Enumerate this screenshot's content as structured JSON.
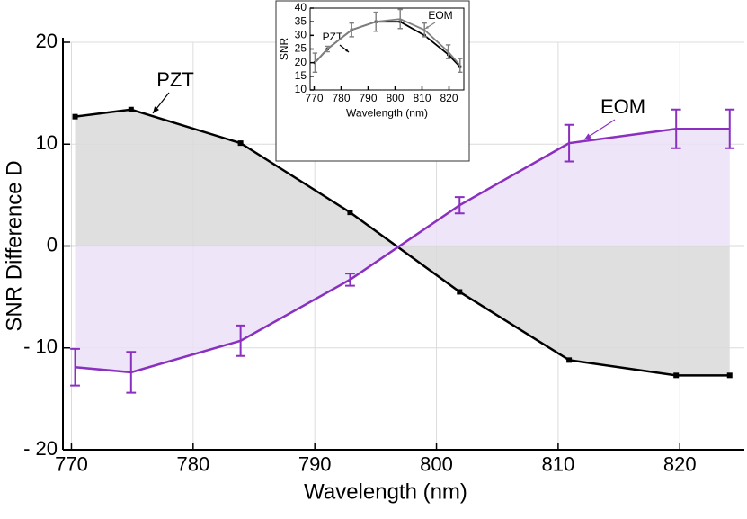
{
  "chart_data": [
    {
      "type": "line",
      "xlabel": "Wavelength (nm)",
      "ylabel": "SNR Difference D",
      "x": [
        770.3,
        774.9,
        783.9,
        792.9,
        801.9,
        810.9,
        819.7,
        824.1
      ],
      "xlim": [
        769.3,
        825.3
      ],
      "xticks": [
        770,
        780,
        790,
        800,
        810,
        820
      ],
      "ylim": [
        -20,
        20
      ],
      "yticks": [
        {
          "value": -20,
          "label": "- 20"
        },
        {
          "value": -10,
          "label": "- 10"
        },
        0,
        10,
        20
      ],
      "grid": true,
      "series": [
        {
          "name": "PZT",
          "color": "#000000",
          "fill": "#d9d9d9",
          "values": [
            12.7,
            13.4,
            10.1,
            3.3,
            -4.5,
            -11.2,
            -12.7,
            -12.7
          ]
        },
        {
          "name": "EOM",
          "color": "#8a2fc0",
          "fill": "#ebe1f7",
          "values": [
            -11.9,
            -12.4,
            -9.3,
            -3.3,
            4.0,
            10.1,
            11.5,
            11.5
          ],
          "errors": [
            1.8,
            2.0,
            1.5,
            0.6,
            0.8,
            1.8,
            1.9,
            1.9
          ]
        }
      ]
    },
    {
      "type": "line",
      "xlabel": "Wavelength (nm)",
      "ylabel": "SNR",
      "x": [
        770.3,
        774.9,
        783.9,
        792.9,
        801.9,
        810.9,
        819.7,
        824.1
      ],
      "xlim": [
        768.5,
        825.5
      ],
      "xticks": [
        770,
        780,
        790,
        800,
        810,
        820
      ],
      "ylim": [
        10,
        40
      ],
      "yticks": [
        10,
        15,
        20,
        25,
        30,
        35,
        40
      ],
      "grid": false,
      "series": [
        {
          "name": "PZT",
          "color": "#000000",
          "values": [
            20,
            25,
            32,
            35,
            35,
            30,
            23,
            18.5
          ]
        },
        {
          "name": "EOM",
          "color": "#808080",
          "values": [
            20,
            25,
            32,
            35,
            36,
            32,
            24,
            19
          ],
          "errors": [
            3.5,
            1.0,
            2.5,
            3.5,
            3.5,
            2.5,
            2.5,
            2.5
          ]
        }
      ]
    }
  ]
}
